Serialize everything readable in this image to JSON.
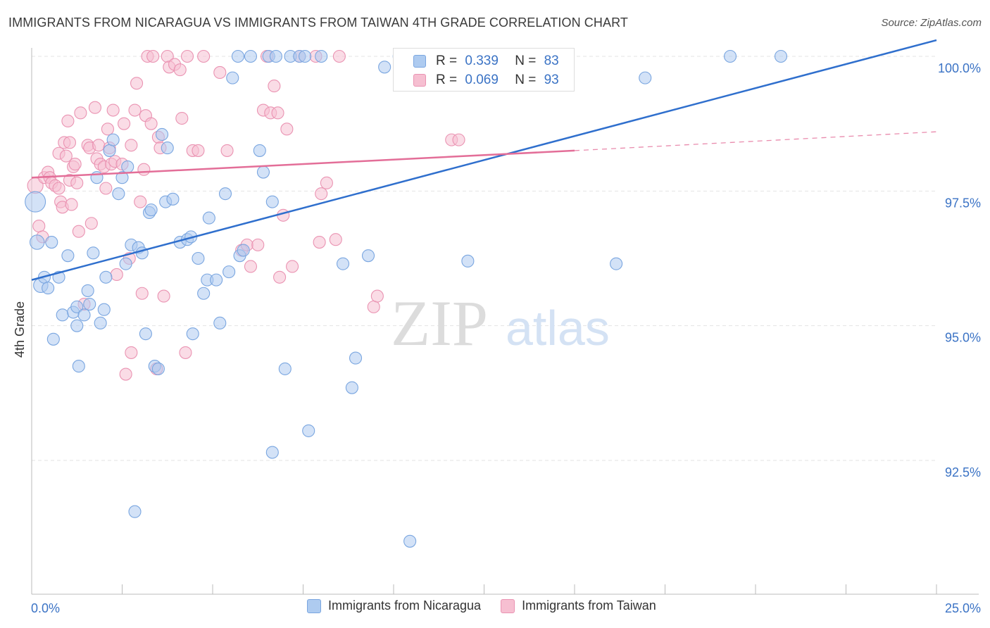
{
  "title": "IMMIGRANTS FROM NICARAGUA VS IMMIGRANTS FROM TAIWAN 4TH GRADE CORRELATION CHART",
  "source": "Source: ZipAtlas.com",
  "watermark": {
    "zip": "ZIP",
    "atlas": "atlas"
  },
  "stats": {
    "r_label": "R =",
    "n_label": "N =",
    "nicaragua": {
      "r": "0.339",
      "n": "83"
    },
    "taiwan": {
      "r": "0.069",
      "n": "93"
    }
  },
  "legend": {
    "nicaragua": "Immigrants from Nicaragua",
    "taiwan": "Immigrants from Taiwan"
  },
  "colors": {
    "nicaragua_fill": "#aecbf0",
    "nicaragua_stroke": "#7aa6e0",
    "nicaragua_line": "#2f6fcd",
    "taiwan_fill": "#f6bfd1",
    "taiwan_stroke": "#ea93b2",
    "taiwan_line": "#e36e98",
    "axis_label": "#3b73c5",
    "grid": "#e3e3e3"
  },
  "chart_data": {
    "type": "scatter",
    "title": "IMMIGRANTS FROM NICARAGUA VS IMMIGRANTS FROM TAIWAN 4TH GRADE CORRELATION CHART",
    "xlabel": "",
    "ylabel": "4th Grade",
    "xlim": [
      0,
      25
    ],
    "ylim": [
      90.0,
      100.4
    ],
    "x_ticks": [
      0,
      2.5,
      5,
      7.5,
      10,
      12.5,
      15,
      17.5,
      20,
      22.5,
      25
    ],
    "x_tick_labels": {
      "0": "0.0%",
      "25": "25.0%"
    },
    "y_ticks": [
      92.5,
      95.0,
      97.5,
      100.0
    ],
    "y_tick_labels": [
      "92.5%",
      "95.0%",
      "97.5%",
      "100.0%"
    ],
    "series": [
      {
        "name": "Immigrants from Nicaragua",
        "trend": {
          "x0": 0,
          "y0": 95.85,
          "x1": 25,
          "y1": 100.3,
          "dashed_to": null
        },
        "points": [
          [
            0.1,
            97.3,
            1.7
          ],
          [
            0.15,
            96.55,
            1.2
          ],
          [
            0.25,
            95.75,
            1.2
          ],
          [
            0.35,
            95.9,
            1
          ],
          [
            0.45,
            95.7,
            1
          ],
          [
            0.55,
            96.55,
            1
          ],
          [
            0.6,
            94.75,
            1
          ],
          [
            0.75,
            95.9,
            1
          ],
          [
            0.85,
            95.2,
            1
          ],
          [
            1.0,
            96.3,
            1
          ],
          [
            1.15,
            95.25,
            1
          ],
          [
            1.25,
            95.35,
            1
          ],
          [
            1.25,
            95.0,
            1
          ],
          [
            1.3,
            94.25,
            1
          ],
          [
            1.45,
            95.2,
            1
          ],
          [
            1.55,
            95.65,
            1
          ],
          [
            1.6,
            95.4,
            1
          ],
          [
            1.7,
            96.35,
            1
          ],
          [
            1.8,
            97.75,
            1
          ],
          [
            1.9,
            95.05,
            1
          ],
          [
            2.0,
            95.3,
            1
          ],
          [
            2.05,
            95.9,
            1
          ],
          [
            2.15,
            98.25,
            1
          ],
          [
            2.25,
            98.45,
            1
          ],
          [
            2.4,
            97.45,
            1
          ],
          [
            2.5,
            97.75,
            1
          ],
          [
            2.6,
            96.15,
            1
          ],
          [
            2.65,
            97.95,
            1
          ],
          [
            2.75,
            96.5,
            1
          ],
          [
            2.85,
            91.55,
            1
          ],
          [
            2.95,
            96.45,
            1
          ],
          [
            3.05,
            96.35,
            1
          ],
          [
            3.15,
            94.85,
            1
          ],
          [
            3.25,
            97.1,
            1
          ],
          [
            3.3,
            97.15,
            1
          ],
          [
            3.4,
            94.25,
            1
          ],
          [
            3.5,
            94.2,
            1
          ],
          [
            3.6,
            98.55,
            1
          ],
          [
            3.7,
            97.3,
            1
          ],
          [
            3.75,
            98.3,
            1
          ],
          [
            3.9,
            97.35,
            1
          ],
          [
            4.1,
            96.55,
            1
          ],
          [
            4.3,
            96.6,
            1
          ],
          [
            4.4,
            96.65,
            1
          ],
          [
            4.45,
            94.85,
            1
          ],
          [
            4.6,
            96.25,
            1
          ],
          [
            4.75,
            95.6,
            1
          ],
          [
            4.85,
            95.85,
            1
          ],
          [
            4.9,
            97.0,
            1
          ],
          [
            5.1,
            95.85,
            1
          ],
          [
            5.2,
            95.05,
            1
          ],
          [
            5.35,
            97.45,
            1
          ],
          [
            5.45,
            96.0,
            1
          ],
          [
            5.55,
            99.6,
            1
          ],
          [
            5.7,
            100.0,
            1
          ],
          [
            5.75,
            96.3,
            1
          ],
          [
            5.85,
            96.4,
            1
          ],
          [
            6.05,
            100.0,
            1
          ],
          [
            6.3,
            98.25,
            1
          ],
          [
            6.4,
            97.85,
            1
          ],
          [
            6.55,
            100.0,
            1
          ],
          [
            6.65,
            97.3,
            1
          ],
          [
            6.65,
            92.65,
            1
          ],
          [
            6.75,
            100.0,
            1
          ],
          [
            7.0,
            94.2,
            1
          ],
          [
            7.15,
            100.0,
            1
          ],
          [
            7.4,
            100.0,
            1
          ],
          [
            7.55,
            100.0,
            1
          ],
          [
            7.65,
            93.05,
            1
          ],
          [
            8.0,
            100.0,
            1
          ],
          [
            8.6,
            96.15,
            1
          ],
          [
            8.85,
            93.85,
            1
          ],
          [
            8.95,
            94.4,
            1
          ],
          [
            9.3,
            96.3,
            1
          ],
          [
            9.75,
            99.8,
            1
          ],
          [
            10.15,
            100.0,
            1
          ],
          [
            10.45,
            91.0,
            1
          ],
          [
            12.05,
            96.2,
            1
          ],
          [
            16.15,
            96.15,
            1
          ],
          [
            16.95,
            99.6,
            1
          ],
          [
            19.3,
            100.0,
            1
          ],
          [
            20.7,
            100.0,
            1
          ]
        ]
      },
      {
        "name": "Immigrants from Taiwan",
        "trend": {
          "x0": 0,
          "y0": 97.75,
          "x1": 15,
          "y1": 98.25,
          "dashed_to": {
            "x": 25,
            "y": 98.6
          }
        },
        "points": [
          [
            0.1,
            97.6,
            1.3
          ],
          [
            0.2,
            96.85,
            1
          ],
          [
            0.3,
            96.65,
            1
          ],
          [
            0.35,
            97.75,
            1
          ],
          [
            0.45,
            97.85,
            1
          ],
          [
            0.5,
            97.75,
            1
          ],
          [
            0.55,
            97.65,
            1
          ],
          [
            0.65,
            97.6,
            1
          ],
          [
            0.75,
            98.2,
            1
          ],
          [
            0.75,
            97.55,
            1
          ],
          [
            0.8,
            97.3,
            1
          ],
          [
            0.85,
            97.2,
            1
          ],
          [
            0.9,
            98.4,
            1
          ],
          [
            0.95,
            98.15,
            1
          ],
          [
            1.0,
            98.8,
            1
          ],
          [
            1.05,
            97.7,
            1
          ],
          [
            1.05,
            98.4,
            1
          ],
          [
            1.1,
            97.25,
            1
          ],
          [
            1.15,
            97.95,
            1
          ],
          [
            1.2,
            98.0,
            1
          ],
          [
            1.25,
            97.65,
            1
          ],
          [
            1.3,
            96.75,
            1
          ],
          [
            1.35,
            98.95,
            1
          ],
          [
            1.45,
            95.4,
            1
          ],
          [
            1.55,
            98.35,
            1
          ],
          [
            1.6,
            98.3,
            1
          ],
          [
            1.65,
            96.9,
            1
          ],
          [
            1.75,
            99.05,
            1
          ],
          [
            1.8,
            98.1,
            1
          ],
          [
            1.85,
            98.35,
            1
          ],
          [
            1.9,
            98.0,
            1
          ],
          [
            2.0,
            97.95,
            1
          ],
          [
            2.05,
            97.55,
            1
          ],
          [
            2.1,
            98.65,
            1
          ],
          [
            2.15,
            98.3,
            1
          ],
          [
            2.2,
            98.0,
            1
          ],
          [
            2.25,
            99.0,
            1
          ],
          [
            2.3,
            98.05,
            1
          ],
          [
            2.35,
            95.95,
            1
          ],
          [
            2.5,
            98.0,
            1
          ],
          [
            2.55,
            98.75,
            1
          ],
          [
            2.6,
            94.1,
            1
          ],
          [
            2.7,
            96.25,
            1
          ],
          [
            2.75,
            94.5,
            1
          ],
          [
            2.75,
            98.35,
            1
          ],
          [
            2.85,
            99.0,
            1
          ],
          [
            2.9,
            99.5,
            1
          ],
          [
            3.0,
            97.3,
            1
          ],
          [
            3.05,
            95.6,
            1
          ],
          [
            3.1,
            97.9,
            1
          ],
          [
            3.15,
            98.9,
            1
          ],
          [
            3.2,
            100.0,
            1
          ],
          [
            3.3,
            98.75,
            1
          ],
          [
            3.35,
            100.0,
            1
          ],
          [
            3.45,
            94.2,
            1
          ],
          [
            3.5,
            98.5,
            1
          ],
          [
            3.55,
            98.3,
            1
          ],
          [
            3.65,
            95.55,
            1
          ],
          [
            3.75,
            100.0,
            1
          ],
          [
            3.8,
            99.8,
            1
          ],
          [
            3.95,
            99.85,
            1
          ],
          [
            4.1,
            99.75,
            1
          ],
          [
            4.15,
            98.85,
            1
          ],
          [
            4.25,
            94.5,
            1
          ],
          [
            4.3,
            100.0,
            1
          ],
          [
            4.45,
            98.25,
            1
          ],
          [
            4.6,
            98.25,
            1
          ],
          [
            4.75,
            100.0,
            1
          ],
          [
            5.2,
            99.7,
            1
          ],
          [
            5.4,
            98.25,
            1
          ],
          [
            5.8,
            96.4,
            1
          ],
          [
            5.95,
            96.5,
            1
          ],
          [
            6.05,
            96.1,
            1
          ],
          [
            6.25,
            96.5,
            1
          ],
          [
            6.4,
            99.0,
            1
          ],
          [
            6.5,
            100.0,
            1
          ],
          [
            6.6,
            98.95,
            1
          ],
          [
            6.7,
            99.45,
            1
          ],
          [
            6.8,
            98.95,
            1
          ],
          [
            6.85,
            95.9,
            1
          ],
          [
            6.95,
            97.05,
            1
          ],
          [
            7.05,
            98.65,
            1
          ],
          [
            7.2,
            96.1,
            1
          ],
          [
            7.4,
            100.0,
            1
          ],
          [
            7.85,
            100.0,
            1
          ],
          [
            7.95,
            96.55,
            1
          ],
          [
            8.0,
            97.45,
            1
          ],
          [
            8.15,
            97.65,
            1
          ],
          [
            8.4,
            96.6,
            1
          ],
          [
            8.5,
            100.0,
            1
          ],
          [
            9.45,
            95.35,
            1
          ],
          [
            9.55,
            95.55,
            1
          ],
          [
            11.6,
            98.45,
            1
          ],
          [
            11.8,
            98.45,
            1
          ]
        ]
      }
    ]
  }
}
